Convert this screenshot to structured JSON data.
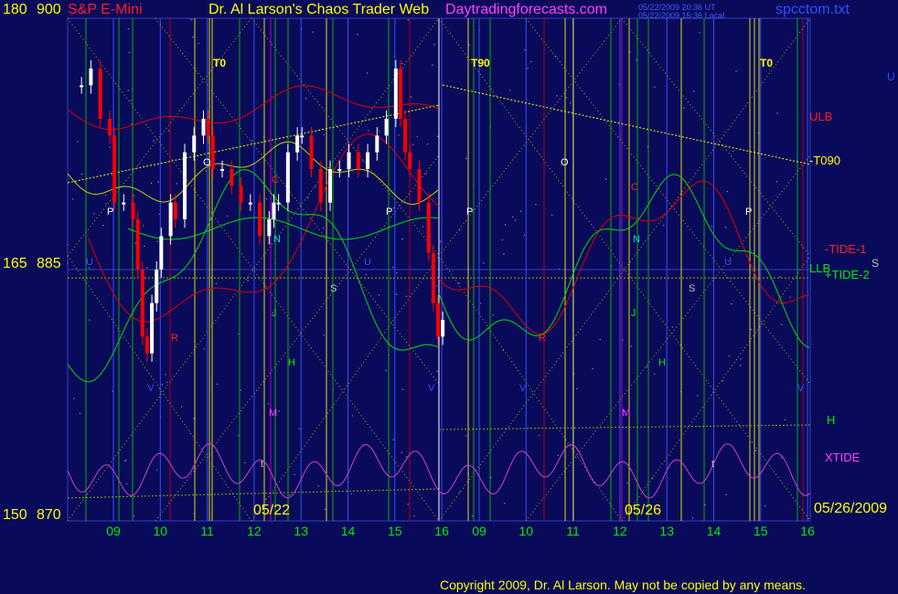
{
  "header": {
    "instrument": "S&P E-Mini",
    "title": "Dr. Al Larson's Chaos Trader Web",
    "site": "Daytradingforecasts.com",
    "stamp_1": "05/22/2009 20:36 UT",
    "stamp_2": "05/22/2009 15:36 Local",
    "file": "spcctom.txt"
  },
  "left_axis": {
    "labels": [
      {
        "a": "180",
        "b": "900"
      },
      {
        "a": "165",
        "b": "885"
      },
      {
        "a": "150",
        "b": "870"
      }
    ]
  },
  "right_labels": {
    "u_top": "U",
    "ulb": "ULB",
    "t090": "-T090",
    "tide1": "-TIDE-1",
    "llb": "LLB",
    "tide2": "+TIDE-2",
    "s": "S",
    "h": "H",
    "xtide": "XTIDE",
    "date": "05/26/2009"
  },
  "bottom_dates": {
    "left": "05/22",
    "right": "05/26"
  },
  "footer": {
    "copyright": "Copyright 2009, Dr. Al Larson. May not be copied by any means."
  },
  "colors": {
    "background": "#0a0a5a",
    "price_up": "#ffffff",
    "price_down": "#ff0000",
    "tide": "#00dd00",
    "red_curves": "#dd0000",
    "xtide": "#cc44cc",
    "ephemeris_yellow": "#ffff00",
    "axis_text": "#ffff00"
  },
  "chart_data": {
    "type": "line",
    "ylim": [
      870,
      900
    ],
    "y_ticks": [
      870,
      885,
      900
    ],
    "y_ticks_alt": [
      150,
      165,
      180
    ],
    "x_tick_labels": [
      "09",
      "10",
      "11",
      "12",
      "13",
      "14",
      "15",
      "16",
      "09",
      "10",
      "11",
      "12",
      "13",
      "14",
      "15",
      "16"
    ],
    "series": [
      {
        "type": "candlestick",
        "x_hours": [
          8.3,
          8.5,
          8.7,
          8.9,
          9.0,
          9.2,
          9.4,
          9.5,
          9.6,
          9.7,
          9.8,
          9.9,
          10.0,
          10.2,
          10.3,
          10.5,
          10.7,
          10.9,
          11.0,
          11.1,
          11.3,
          11.5,
          11.7,
          11.9,
          12.1,
          12.3,
          12.4,
          12.5,
          12.7,
          12.9,
          13.0,
          13.2,
          13.4,
          13.6,
          13.8,
          14.0,
          14.2,
          14.4,
          14.6,
          14.8,
          15.0,
          15.1,
          15.2,
          15.3,
          15.5,
          15.7,
          15.8,
          15.9,
          16.0
        ],
        "close": [
          896,
          897,
          894,
          893,
          889,
          889,
          888,
          885,
          881,
          880,
          883,
          885,
          887,
          889,
          888,
          892,
          893,
          894,
          893,
          891,
          891,
          890,
          889,
          889,
          887,
          888,
          889,
          889,
          892,
          893,
          893,
          891,
          889,
          891,
          891,
          892,
          891,
          892,
          893,
          894,
          897,
          894,
          892,
          891,
          889,
          886,
          883,
          881,
          882
        ]
      }
    ],
    "annotations": [
      "T0",
      "T90",
      "T0",
      "P",
      "O",
      "U",
      "R",
      "N",
      "J",
      "H",
      "M",
      "S",
      "V",
      "t",
      "C"
    ]
  }
}
